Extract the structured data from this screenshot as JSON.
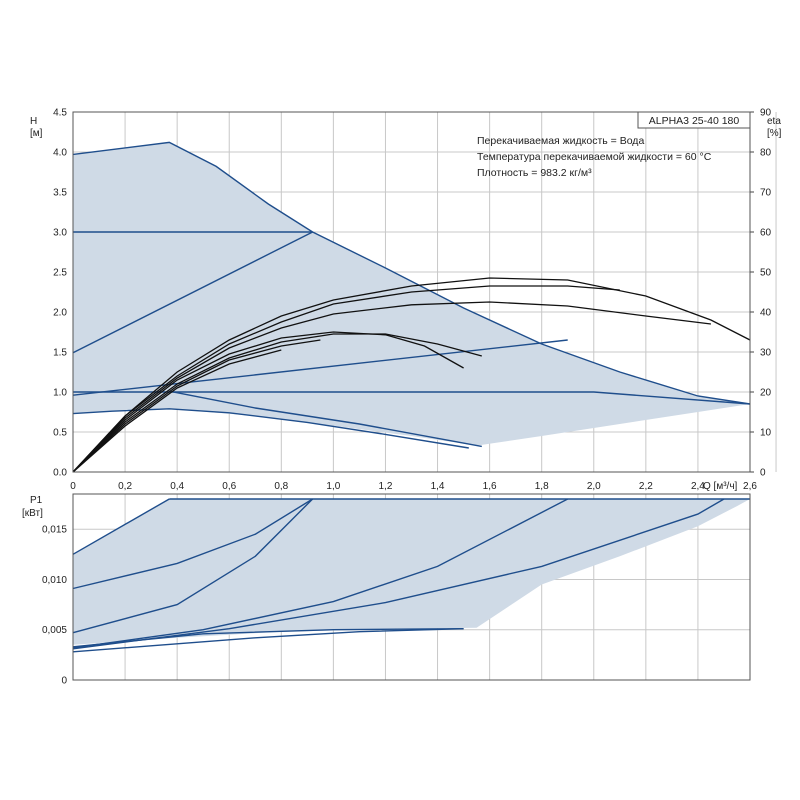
{
  "chart_data": [
    {
      "type": "line",
      "model": "ALPHA3 25-40 180",
      "info": [
        "Перекачиваемая жидкость = Вода",
        "Температура перекачиваемой жидкости = 60 °C",
        "Плотность = 983.2 кг/м³"
      ],
      "ylabel": "H",
      "yunit": "[м]",
      "y2label": "eta",
      "y2unit": "[%]",
      "xunit": "Q [м³/ч]",
      "xlim": [
        0,
        2.6
      ],
      "ylim": [
        0,
        4.5
      ],
      "y2lim": [
        0,
        90
      ],
      "xticks": [
        "0",
        "0,2",
        "0,4",
        "0,6",
        "0,8",
        "1,0",
        "1,2",
        "1,4",
        "1,6",
        "1,8",
        "2,0",
        "2,2",
        "2,4",
        "2,6"
      ],
      "yticks": [
        "0.0",
        "0.5",
        "1.0",
        "1.5",
        "2.0",
        "2.5",
        "3.0",
        "3.5",
        "4.0",
        "4.5"
      ],
      "y2ticks": [
        "0",
        "10",
        "20",
        "30",
        "40",
        "50",
        "60",
        "70",
        "80",
        "90"
      ],
      "grid": true,
      "colors": {
        "curve": "#1f4e8c",
        "area": "#cfdae6",
        "eta": "#111111",
        "grid": "#c8c8c8"
      },
      "area": {
        "upper": [
          [
            0,
            3.97
          ],
          [
            0.37,
            4.12
          ],
          [
            0.55,
            3.82
          ],
          [
            0.75,
            3.35
          ],
          [
            0.92,
            3.0
          ],
          [
            1.2,
            2.55
          ],
          [
            1.5,
            2.05
          ],
          [
            1.8,
            1.6
          ],
          [
            2.1,
            1.25
          ],
          [
            2.4,
            0.95
          ],
          [
            2.6,
            0.85
          ]
        ],
        "lower": [
          [
            2.6,
            0.85
          ],
          [
            2.4,
            0.75
          ],
          [
            2.1,
            0.6
          ],
          [
            1.8,
            0.45
          ],
          [
            1.55,
            0.33
          ],
          [
            1.3,
            0.45
          ],
          [
            1.0,
            0.58
          ],
          [
            0.7,
            0.7
          ],
          [
            0.37,
            0.79
          ],
          [
            0.15,
            0.76
          ],
          [
            0,
            0.73
          ]
        ]
      },
      "series": [
        {
          "kind": "head",
          "values": [
            [
              0,
              1.0
            ],
            [
              0.5,
              1.0
            ],
            [
              1.0,
              1.0
            ],
            [
              1.5,
              1.0
            ],
            [
              2.0,
              1.0
            ],
            [
              2.6,
              0.85
            ]
          ]
        },
        {
          "kind": "head",
          "values": [
            [
              0,
              3.0
            ],
            [
              0.92,
              3.0
            ]
          ]
        },
        {
          "kind": "head",
          "values": [
            [
              0,
              1.49
            ],
            [
              0.92,
              3.0
            ]
          ]
        },
        {
          "kind": "head",
          "values": [
            [
              0,
              0.96
            ],
            [
              1.9,
              1.65
            ]
          ]
        },
        {
          "kind": "head",
          "values": [
            [
              0,
              0.73
            ],
            [
              0.15,
              0.76
            ],
            [
              0.37,
              0.79
            ],
            [
              0.6,
              0.74
            ],
            [
              0.9,
              0.62
            ],
            [
              1.2,
              0.47
            ],
            [
              1.52,
              0.3
            ]
          ]
        },
        {
          "kind": "head",
          "values": [
            [
              0.37,
              1.01
            ],
            [
              0.7,
              0.8
            ],
            [
              1.1,
              0.6
            ],
            [
              1.57,
              0.32
            ]
          ]
        },
        {
          "kind": "eta",
          "values": [
            [
              0,
              0
            ],
            [
              0.2,
              14
            ],
            [
              0.4,
              25
            ],
            [
              0.6,
              33
            ],
            [
              0.8,
              39
            ],
            [
              1.0,
              43
            ],
            [
              1.3,
              46.5
            ],
            [
              1.6,
              48.5
            ],
            [
              1.9,
              48
            ],
            [
              2.2,
              44
            ],
            [
              2.45,
              38
            ],
            [
              2.6,
              33
            ]
          ]
        },
        {
          "kind": "eta",
          "values": [
            [
              0,
              0
            ],
            [
              0.2,
              14
            ],
            [
              0.4,
              24
            ],
            [
              0.6,
              32
            ],
            [
              0.8,
              37.5
            ],
            [
              1.0,
              42
            ],
            [
              1.3,
              45
            ],
            [
              1.6,
              46.5
            ],
            [
              1.9,
              46.5
            ],
            [
              2.1,
              45.5
            ]
          ]
        },
        {
          "kind": "eta",
          "values": [
            [
              0,
              0
            ],
            [
              0.2,
              13.5
            ],
            [
              0.4,
              23.5
            ],
            [
              0.6,
              31
            ],
            [
              0.8,
              36
            ],
            [
              1.0,
              39.5
            ],
            [
              1.3,
              41.8
            ],
            [
              1.6,
              42.5
            ],
            [
              1.9,
              41.5
            ],
            [
              2.2,
              39
            ],
            [
              2.45,
              37
            ]
          ]
        },
        {
          "kind": "eta",
          "values": [
            [
              0,
              0
            ],
            [
              0.2,
              13
            ],
            [
              0.4,
              23
            ],
            [
              0.6,
              29.5
            ],
            [
              0.8,
              33.5
            ],
            [
              1.0,
              35
            ],
            [
              1.2,
              34.3
            ],
            [
              1.35,
              31.5
            ],
            [
              1.5,
              26
            ]
          ]
        },
        {
          "kind": "eta",
          "values": [
            [
              0,
              0
            ],
            [
              0.2,
              12.5
            ],
            [
              0.4,
              22
            ],
            [
              0.6,
              28.5
            ],
            [
              0.8,
              32.5
            ],
            [
              1.0,
              34.5
            ],
            [
              1.2,
              34.5
            ],
            [
              1.4,
              32
            ],
            [
              1.57,
              29
            ]
          ]
        },
        {
          "kind": "eta",
          "values": [
            [
              0,
              0
            ],
            [
              0.2,
              12
            ],
            [
              0.4,
              21.5
            ],
            [
              0.6,
              28
            ],
            [
              0.8,
              31.5
            ],
            [
              0.95,
              33
            ]
          ]
        },
        {
          "kind": "eta",
          "values": [
            [
              0,
              0
            ],
            [
              0.2,
              11.5
            ],
            [
              0.4,
              21
            ],
            [
              0.6,
              27
            ],
            [
              0.8,
              30.5
            ]
          ]
        }
      ]
    },
    {
      "type": "line",
      "ylabel": "P1",
      "yunit": "[кВт]",
      "xlim": [
        0,
        2.6
      ],
      "ylim": [
        0,
        0.0185
      ],
      "yticks": [
        {
          "v": 0,
          "label": "0"
        },
        {
          "v": 0.005,
          "label": "0,005"
        },
        {
          "v": 0.01,
          "label": "0,010"
        },
        {
          "v": 0.015,
          "label": "0,015"
        }
      ],
      "grid": true,
      "area": {
        "upper": [
          [
            0,
            0.0125
          ],
          [
            0.37,
            0.018
          ],
          [
            2.6,
            0.018
          ]
        ],
        "lower": [
          [
            2.6,
            0.018
          ],
          [
            2.55,
            0.0173
          ],
          [
            2.4,
            0.0153
          ],
          [
            2.1,
            0.0123
          ],
          [
            1.8,
            0.0095
          ],
          [
            1.55,
            0.0052
          ],
          [
            1.3,
            0.0051
          ],
          [
            0.8,
            0.0048
          ],
          [
            0.4,
            0.0042
          ],
          [
            0,
            0.0035
          ]
        ]
      },
      "series": [
        {
          "kind": "power",
          "values": [
            [
              0.37,
              0.018
            ],
            [
              2.6,
              0.018
            ]
          ]
        },
        {
          "kind": "power",
          "values": [
            [
              0,
              0.0125
            ],
            [
              0.37,
              0.018
            ]
          ]
        },
        {
          "kind": "power",
          "values": [
            [
              0,
              0.0091
            ],
            [
              0.4,
              0.0116
            ],
            [
              0.7,
              0.0145
            ],
            [
              0.92,
              0.018
            ]
          ]
        },
        {
          "kind": "power",
          "values": [
            [
              0,
              0.0047
            ],
            [
              0.4,
              0.0075
            ],
            [
              0.7,
              0.0123
            ],
            [
              0.92,
              0.018
            ]
          ]
        },
        {
          "kind": "power",
          "values": [
            [
              0,
              0.0032
            ],
            [
              0.5,
              0.005
            ],
            [
              1.0,
              0.0078
            ],
            [
              1.4,
              0.0113
            ],
            [
              1.9,
              0.018
            ]
          ]
        },
        {
          "kind": "power",
          "values": [
            [
              0,
              0.0031
            ],
            [
              0.6,
              0.0051
            ],
            [
              1.2,
              0.0077
            ],
            [
              1.8,
              0.0113
            ],
            [
              2.4,
              0.0165
            ],
            [
              2.5,
              0.018
            ]
          ]
        },
        {
          "kind": "power",
          "values": [
            [
              0,
              0.0033
            ],
            [
              0.5,
              0.0046
            ],
            [
              1.0,
              0.005
            ],
            [
              1.5,
              0.0051
            ]
          ]
        },
        {
          "kind": "power",
          "values": [
            [
              0,
              0.0028
            ],
            [
              0.3,
              0.0034
            ],
            [
              0.7,
              0.0042
            ],
            [
              1.1,
              0.0048
            ],
            [
              1.5,
              0.0051
            ]
          ]
        }
      ]
    }
  ]
}
